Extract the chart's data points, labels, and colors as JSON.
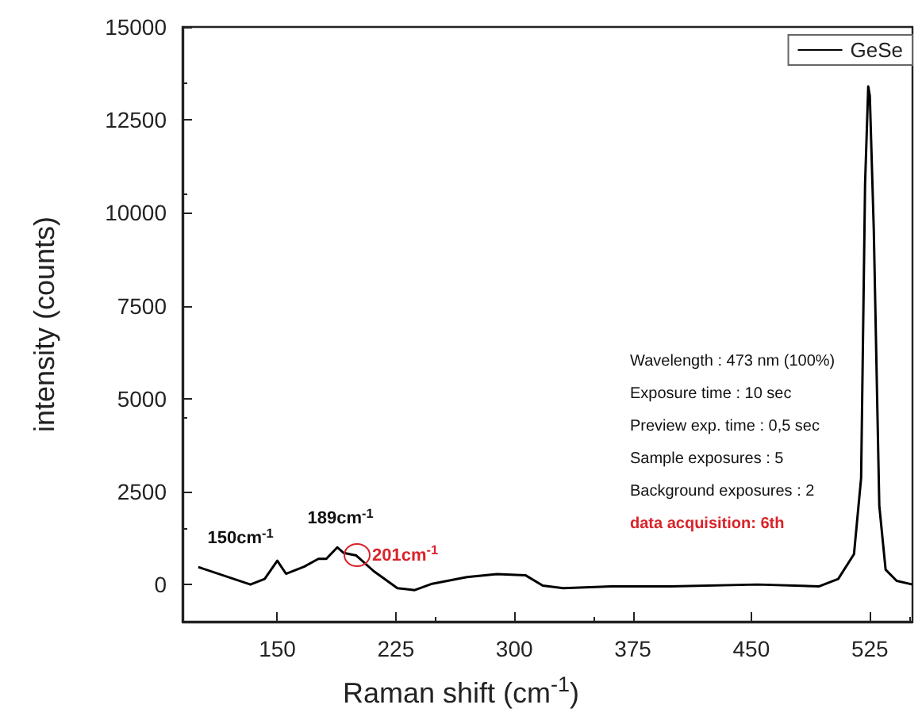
{
  "chart_data": {
    "type": "line",
    "xlabel": "Raman shift (cm$^{-1}$)",
    "ylabel": "intensity (counts)",
    "x": [
      100,
      133,
      142,
      150,
      155.5,
      167,
      176,
      181,
      188,
      192,
      200,
      211,
      226,
      237,
      248,
      270,
      289,
      307,
      318,
      331,
      362,
      399,
      454,
      493,
      505,
      515,
      519.5,
      522,
      524,
      525,
      527.5,
      531,
      535,
      542,
      552
    ],
    "series": [
      {
        "name": "GeSe",
        "color": "#000000",
        "values": [
          470,
          0,
          150,
          640,
          290,
          480,
          690,
          690,
          1000,
          850,
          780,
          360,
          -100,
          -150,
          20,
          200,
          280,
          250,
          -30,
          -100,
          -50,
          -50,
          0,
          -50,
          150,
          820,
          2870,
          10780,
          13400,
          13150,
          9560,
          2120,
          400,
          100,
          0
        ]
      }
    ],
    "xlim": [
      90,
      552
    ],
    "xticks": [
      150,
      225,
      300,
      375,
      450,
      525
    ],
    "ylim": [
      -1000,
      15000
    ],
    "yticks": [
      0,
      2500,
      5000,
      7500,
      10000,
      12500,
      15000
    ],
    "grid": false,
    "legend": "top right",
    "marker": "none",
    "line_style": "solid",
    "annotations": [
      {
        "text": "150cm$^{-1}$",
        "x": 150,
        "y": 640
      },
      {
        "text": "189cm$^{-1}$",
        "x": 188,
        "y": 1000
      },
      {
        "text": "201cm$^{-1}$",
        "x": 200,
        "y": 780
      },
      "Wavelength : 473 nm (100%)",
      "Exposure time : 10 sec",
      "Preview exp. time : 0,5 sec",
      "Sample exposures : 5",
      "Background exposures : 2",
      "data acquisition: 6th"
    ]
  }
}
